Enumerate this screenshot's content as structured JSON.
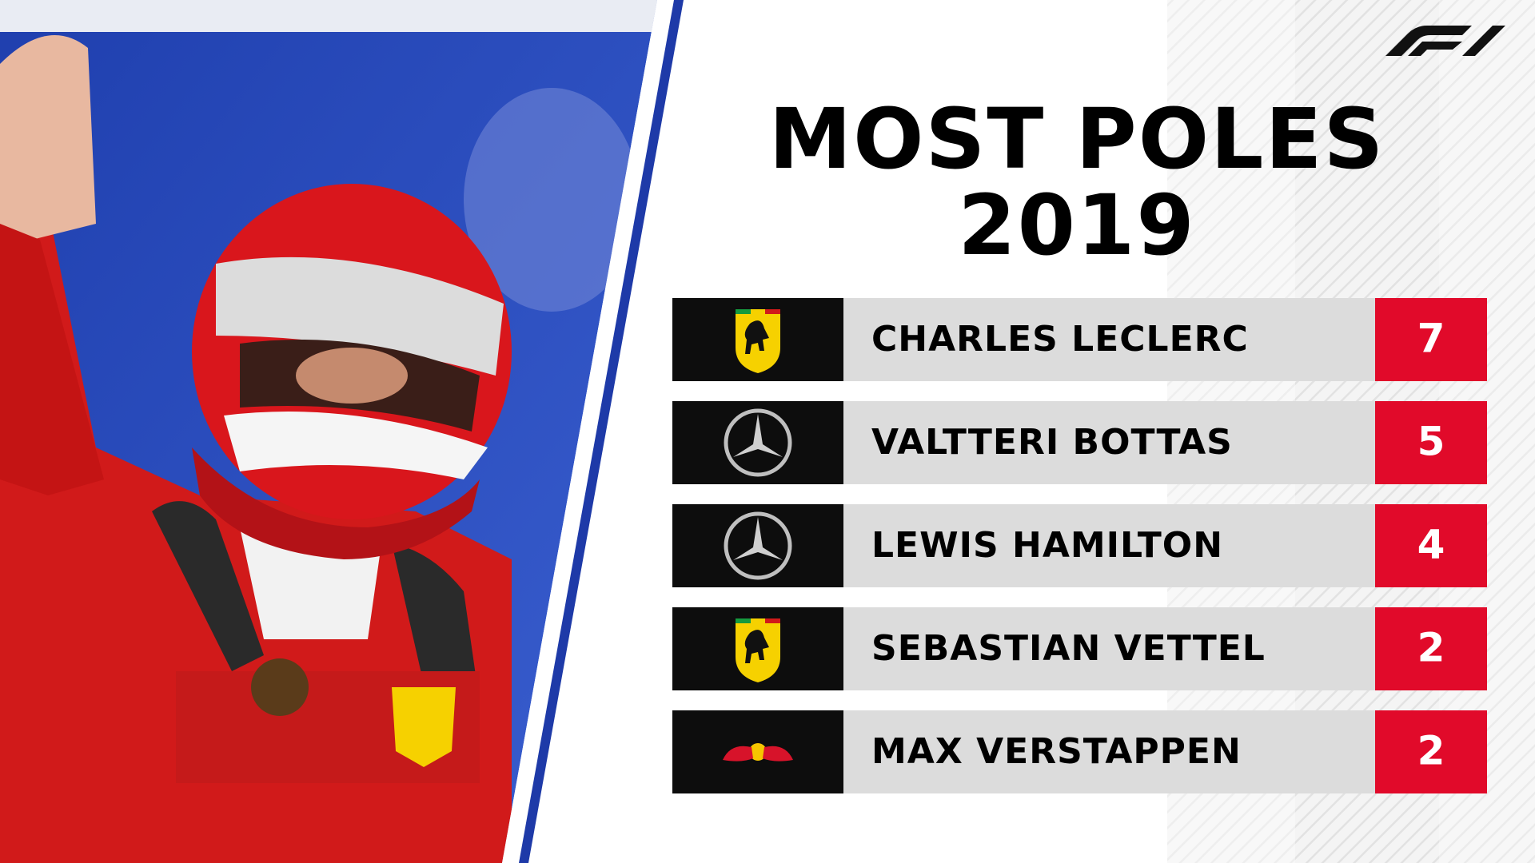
{
  "header": {
    "title": [
      "MOST POLES",
      "2019"
    ]
  },
  "table": {
    "rows": [
      {
        "driver": "CHARLES LECLERC",
        "poles": 7
      },
      {
        "driver": "VALTTERI BOTTAS",
        "poles": 5
      },
      {
        "driver": "LEWIS HAMILTON",
        "poles": 4
      },
      {
        "driver": "SEBASTIAN VETTEL",
        "poles": 2
      },
      {
        "driver": "MAX VERSTAPPEN",
        "poles": 2
      }
    ]
  }
}
